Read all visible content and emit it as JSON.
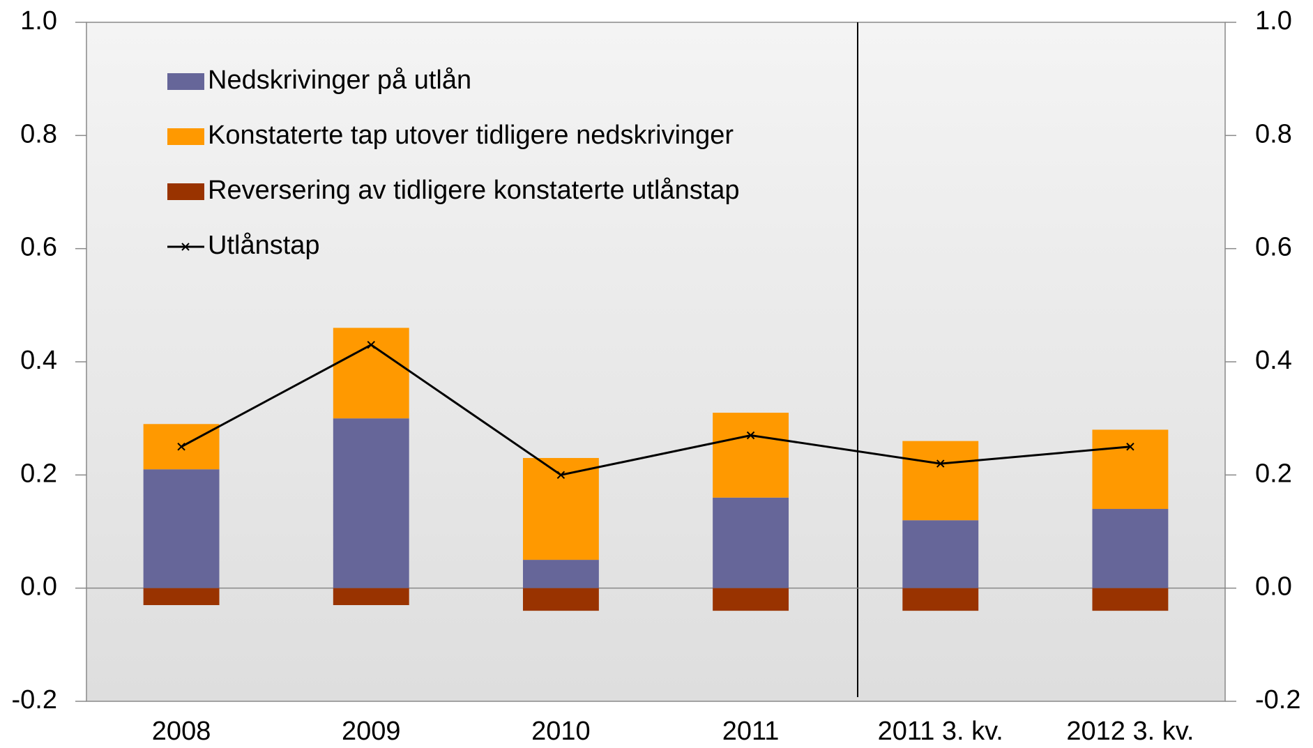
{
  "chart_data": {
    "type": "bar",
    "stacked": true,
    "categories": [
      "2008",
      "2009",
      "2010",
      "2011",
      "2011 3. kv.",
      "2012 3. kv."
    ],
    "series": [
      {
        "name": "Nedskrivinger på utlån",
        "color": "#666699",
        "values": [
          0.21,
          0.3,
          0.05,
          0.16,
          0.12,
          0.14
        ]
      },
      {
        "name": "Konstaterte tap utover tidligere nedskrivinger",
        "color": "#ff9900",
        "values": [
          0.08,
          0.16,
          0.18,
          0.15,
          0.14,
          0.14
        ]
      },
      {
        "name": "Reversering av tidligere konstaterte utlånstap",
        "color": "#993300",
        "values": [
          -0.03,
          -0.03,
          -0.04,
          -0.04,
          -0.04,
          -0.04
        ]
      },
      {
        "name": "Utlånstap",
        "color": "#000000",
        "type": "line",
        "values": [
          0.25,
          0.43,
          0.2,
          0.27,
          0.22,
          0.25
        ]
      }
    ],
    "ylim": [
      -0.2,
      1
    ],
    "yticks": [
      -0.2,
      {
        "value": 0,
        "label": "0.0"
      },
      0.2,
      0.4,
      0.6,
      0.8,
      {
        "value": 1,
        "label": "1.0"
      }
    ],
    "y2lim": [
      -0.2,
      1
    ],
    "y2ticks": [
      -0.2,
      {
        "value": 0,
        "label": "0.0"
      },
      0.2,
      0.4,
      0.6,
      0.8,
      {
        "value": 1,
        "label": "1.0"
      }
    ],
    "legend": "upper left"
  }
}
